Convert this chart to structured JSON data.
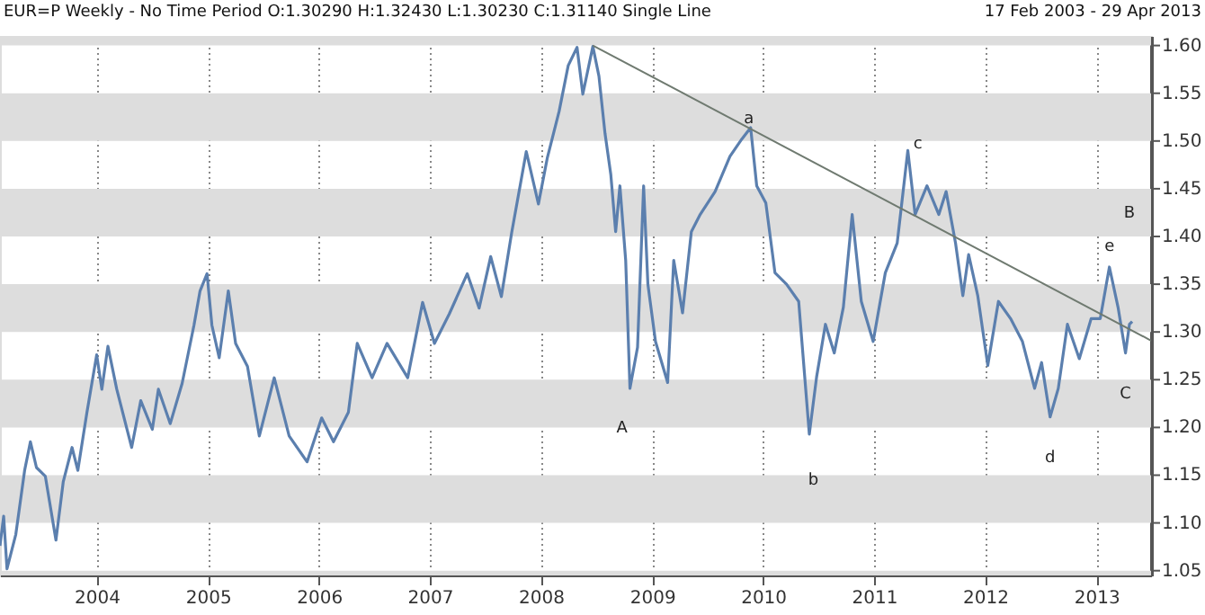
{
  "chart_data": {
    "type": "line",
    "title": "EUR=P Weekly -  No Time Period O:1.30290 H:1.32430 L:1.30230 C:1.31140 Single Line",
    "subtitle": "17 Feb 2003  -  29 Apr 2013",
    "xlim": [
      "2003-02-17",
      "2013-06-30"
    ],
    "xticks": [
      {
        "value": "2004-01-01",
        "label": "2004"
      },
      {
        "value": "2005-01-01",
        "label": "2005"
      },
      {
        "value": "2006-01-01",
        "label": "2006"
      },
      {
        "value": "2007-01-01",
        "label": "2007"
      },
      {
        "value": "2008-01-01",
        "label": "2008"
      },
      {
        "value": "2009-01-01",
        "label": "2009"
      },
      {
        "value": "2010-01-01",
        "label": "2010"
      },
      {
        "value": "2011-01-01",
        "label": "2011"
      },
      {
        "value": "2012-01-01",
        "label": "2012"
      },
      {
        "value": "2013-01-01",
        "label": "2013"
      }
    ],
    "ylim": [
      1.045,
      1.61
    ],
    "yticks": [
      1.05,
      {
        "value": 1.1,
        "label": "1.10"
      },
      1.15,
      {
        "value": 1.2,
        "label": "1.20"
      },
      1.25,
      {
        "value": 1.3,
        "label": "1.30"
      },
      1.35,
      {
        "value": 1.4,
        "label": "1.40"
      },
      1.45,
      {
        "value": 1.5,
        "label": "1.50"
      },
      1.55,
      {
        "value": 1.6,
        "label": "1.60"
      }
    ],
    "grid": "x",
    "line_style": "solid",
    "marker": "none",
    "bands": [
      {
        "axis": "y",
        "from": 1.6,
        "to": 1.61,
        "color": "#dddddd"
      },
      {
        "axis": "y",
        "from": 1.5,
        "to": 1.55,
        "color": "#dddddd"
      },
      {
        "axis": "y",
        "from": 1.4,
        "to": 1.45,
        "color": "#dddddd"
      },
      {
        "axis": "y",
        "from": 1.3,
        "to": 1.35,
        "color": "#dddddd"
      },
      {
        "axis": "y",
        "from": 1.2,
        "to": 1.25,
        "color": "#dddddd"
      },
      {
        "axis": "y",
        "from": 1.1,
        "to": 1.15,
        "color": "#dddddd"
      },
      {
        "axis": "y",
        "from": 1.045,
        "to": 1.05,
        "color": "#dddddd"
      }
    ],
    "annotations": [
      {
        "text": "A",
        "x": "2008-09-24",
        "y": 1.2
      },
      {
        "text": "a",
        "x": "2009-11-15",
        "y": 1.524
      },
      {
        "text": "b",
        "x": "2010-06-15",
        "y": 1.146
      },
      {
        "text": "c",
        "x": "2011-05-25",
        "y": 1.498
      },
      {
        "text": "d",
        "x": "2012-08-02",
        "y": 1.211
      },
      "B",
      {
        "text": "e",
        "x": "2013-02-13",
        "y": 1.368
      },
      {
        "text": "C",
        "x": "2013-04-07",
        "y": 1.278
      }
    ],
    "series": [
      {
        "color": "#5b7fae",
        "x": [
          "2003-02-17",
          "2003-03-01",
          "2003-03-12",
          "2003-04-10",
          "2003-05-09",
          "2003-05-28",
          "2003-06-17",
          "2003-07-16",
          "2003-08-20",
          "2003-09-13",
          "2003-10-12",
          "2003-10-31",
          "2003-11-30",
          "2004-01-01",
          "2004-01-18",
          "2004-02-07",
          "2004-03-07",
          "2004-04-25",
          "2004-05-25",
          "2004-07-02",
          "2004-07-22",
          "2004-08-30",
          "2004-10-08",
          "2004-11-16",
          "2004-12-06",
          "2004-12-29",
          "2005-01-14",
          "2005-02-07",
          "2005-03-09",
          "2005-04-02",
          "2005-05-11",
          "2005-06-19",
          "2005-08-07",
          "2005-09-25",
          "2005-11-23",
          "2006-01-10",
          "2006-02-18",
          "2006-04-08",
          "2006-05-07",
          "2006-06-25",
          "2006-08-13",
          "2006-10-20",
          "2006-12-08",
          "2007-01-16",
          "2007-03-06",
          "2007-05-04",
          "2007-06-12",
          "2007-07-20",
          "2007-08-24",
          "2007-09-27",
          "2007-11-14",
          "2007-12-24",
          "2008-01-22",
          "2008-03-01",
          "2008-03-31",
          "2008-04-29",
          "2008-05-18",
          "2008-06-20",
          "2008-07-10",
          "2008-07-30",
          "2008-08-18",
          "2008-09-03",
          "2008-09-17",
          "2008-10-06",
          "2008-10-20",
          "2008-11-14",
          "2008-12-04",
          "2008-12-18",
          "2009-01-12",
          "2009-02-21",
          "2009-03-13",
          "2009-04-11",
          "2009-05-10",
          "2009-06-08",
          "2009-07-27",
          "2009-09-14",
          "2009-10-23",
          "2009-11-21",
          "2009-12-11",
          "2010-01-10",
          "2010-02-09",
          "2010-03-19",
          "2010-04-28",
          "2010-06-02",
          "2010-06-26",
          "2010-07-25",
          "2010-08-23",
          "2010-09-22",
          "2010-10-21",
          "2010-11-20",
          "2010-12-29",
          "2011-02-07",
          "2011-03-18",
          "2011-04-22",
          "2011-05-16",
          "2011-06-24",
          "2011-08-02",
          "2011-08-26",
          "2011-09-26",
          "2011-10-20",
          "2011-11-08",
          "2011-12-08",
          "2012-01-10",
          "2012-02-14",
          "2012-03-25",
          "2012-05-03",
          "2012-06-12",
          "2012-07-05",
          "2012-08-02",
          "2012-08-29",
          "2012-09-28",
          "2012-11-06",
          "2012-12-15",
          "2013-01-14",
          "2013-02-13",
          "2013-03-14",
          "2013-04-07",
          "2013-04-20",
          "2013-04-29"
        ],
        "values": [
          1.076,
          1.107,
          1.052,
          1.088,
          1.155,
          1.185,
          1.158,
          1.149,
          1.082,
          1.143,
          1.179,
          1.155,
          1.216,
          1.276,
          1.24,
          1.285,
          1.24,
          1.179,
          1.228,
          1.198,
          1.24,
          1.204,
          1.246,
          1.307,
          1.343,
          1.361,
          1.307,
          1.273,
          1.343,
          1.288,
          1.264,
          1.191,
          1.252,
          1.191,
          1.164,
          1.21,
          1.185,
          1.216,
          1.288,
          1.252,
          1.288,
          1.252,
          1.331,
          1.288,
          1.319,
          1.361,
          1.325,
          1.379,
          1.337,
          1.404,
          1.489,
          1.434,
          1.482,
          1.531,
          1.579,
          1.598,
          1.549,
          1.599,
          1.568,
          1.508,
          1.465,
          1.405,
          1.453,
          1.375,
          1.241,
          1.284,
          1.453,
          1.35,
          1.29,
          1.247,
          1.375,
          1.32,
          1.405,
          1.423,
          1.447,
          1.484,
          1.502,
          1.514,
          1.453,
          1.435,
          1.362,
          1.35,
          1.332,
          1.193,
          1.253,
          1.308,
          1.278,
          1.326,
          1.423,
          1.332,
          1.29,
          1.362,
          1.393,
          1.49,
          1.423,
          1.453,
          1.423,
          1.447,
          1.393,
          1.338,
          1.381,
          1.338,
          1.265,
          1.332,
          1.314,
          1.29,
          1.241,
          1.268,
          1.211,
          1.241,
          1.308,
          1.272,
          1.314,
          1.314,
          1.368,
          1.325,
          1.278,
          1.308,
          1.311
        ]
      },
      {
        "color": "#6f7a70",
        "x": [
          "2008-06-20",
          "2013-06-30"
        ],
        "values": [
          1.6,
          1.291
        ]
      }
    ]
  }
}
